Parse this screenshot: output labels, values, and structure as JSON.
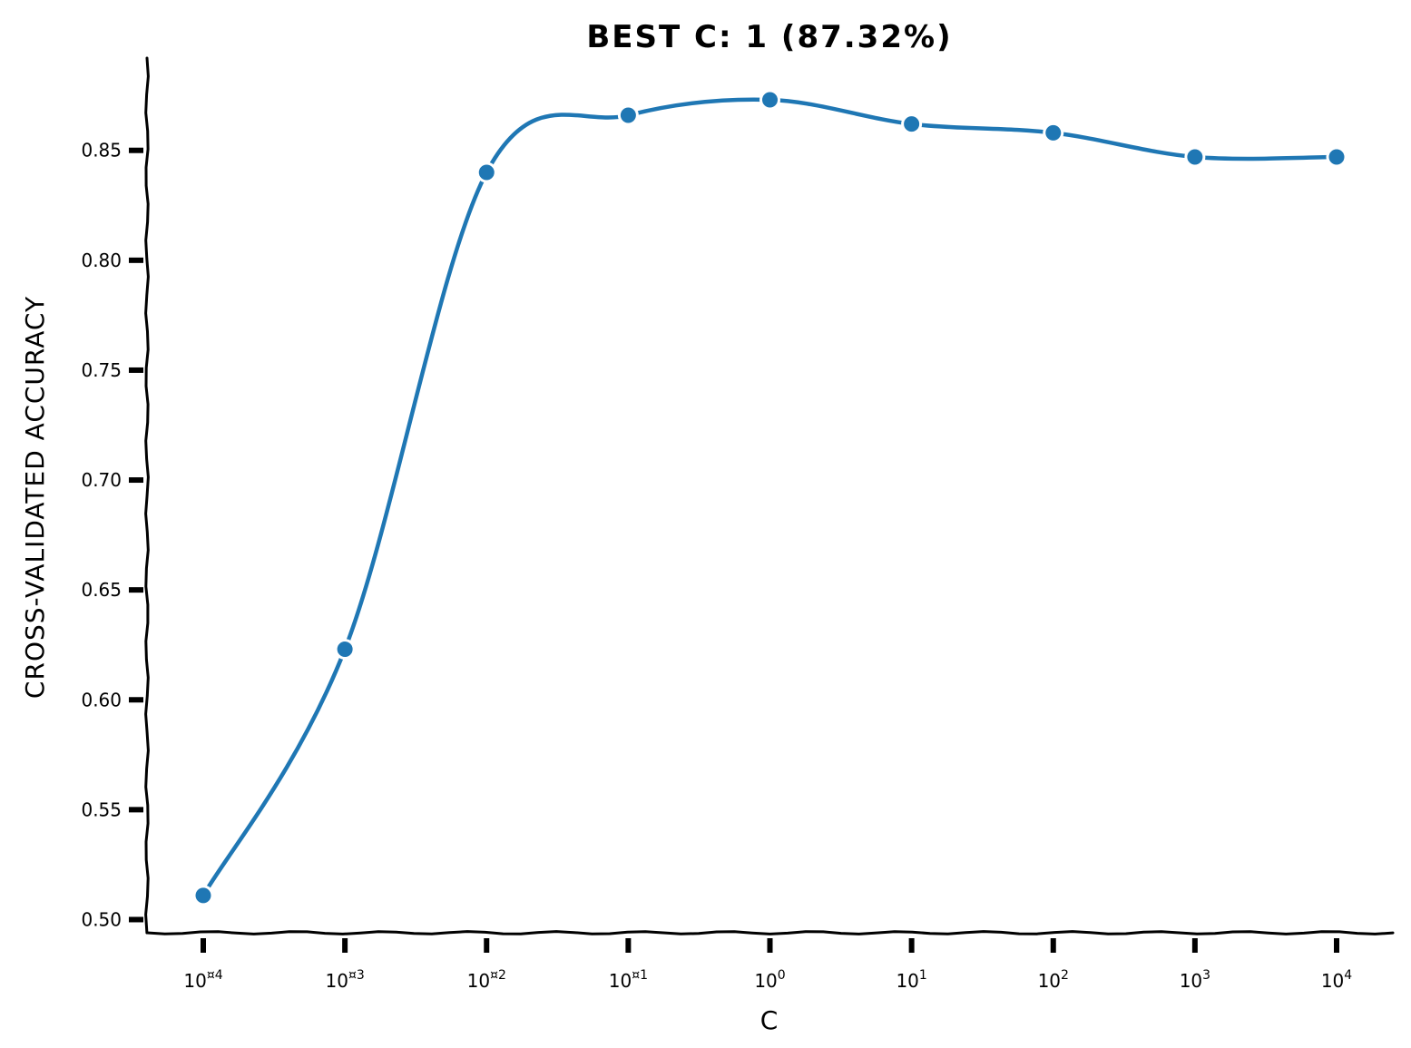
{
  "chart_data": {
    "type": "line",
    "title": "BEST C: 1 (87.32%)",
    "xlabel": "C",
    "ylabel": "CROSS-VALIDATED ACCURACY",
    "x_scale": "log",
    "x": [
      0.0001,
      0.001,
      0.01,
      0.1,
      1,
      10,
      100,
      1000,
      10000
    ],
    "x_tick_labels": [
      {
        "base": "10",
        "exp": "¤4"
      },
      {
        "base": "10",
        "exp": "¤3"
      },
      {
        "base": "10",
        "exp": "¤2"
      },
      {
        "base": "10",
        "exp": "¤1"
      },
      {
        "base": "10",
        "exp": "0"
      },
      {
        "base": "10",
        "exp": "1"
      },
      {
        "base": "10",
        "exp": "2"
      },
      {
        "base": "10",
        "exp": "3"
      },
      {
        "base": "10",
        "exp": "4"
      }
    ],
    "y_ticks": [
      0.5,
      0.55,
      0.6,
      0.65,
      0.7,
      0.75,
      0.8,
      0.85
    ],
    "y_tick_labels": [
      "0.50",
      "0.55",
      "0.60",
      "0.65",
      "0.70",
      "0.75",
      "0.80",
      "0.85"
    ],
    "ylim": [
      0.494,
      0.892
    ],
    "series": [
      {
        "values": [
          0.511,
          0.623,
          0.84,
          0.866,
          0.873,
          0.862,
          0.858,
          0.847,
          0.847
        ],
        "color": "#1f77b4"
      }
    ],
    "grid": false,
    "legend": "none"
  }
}
